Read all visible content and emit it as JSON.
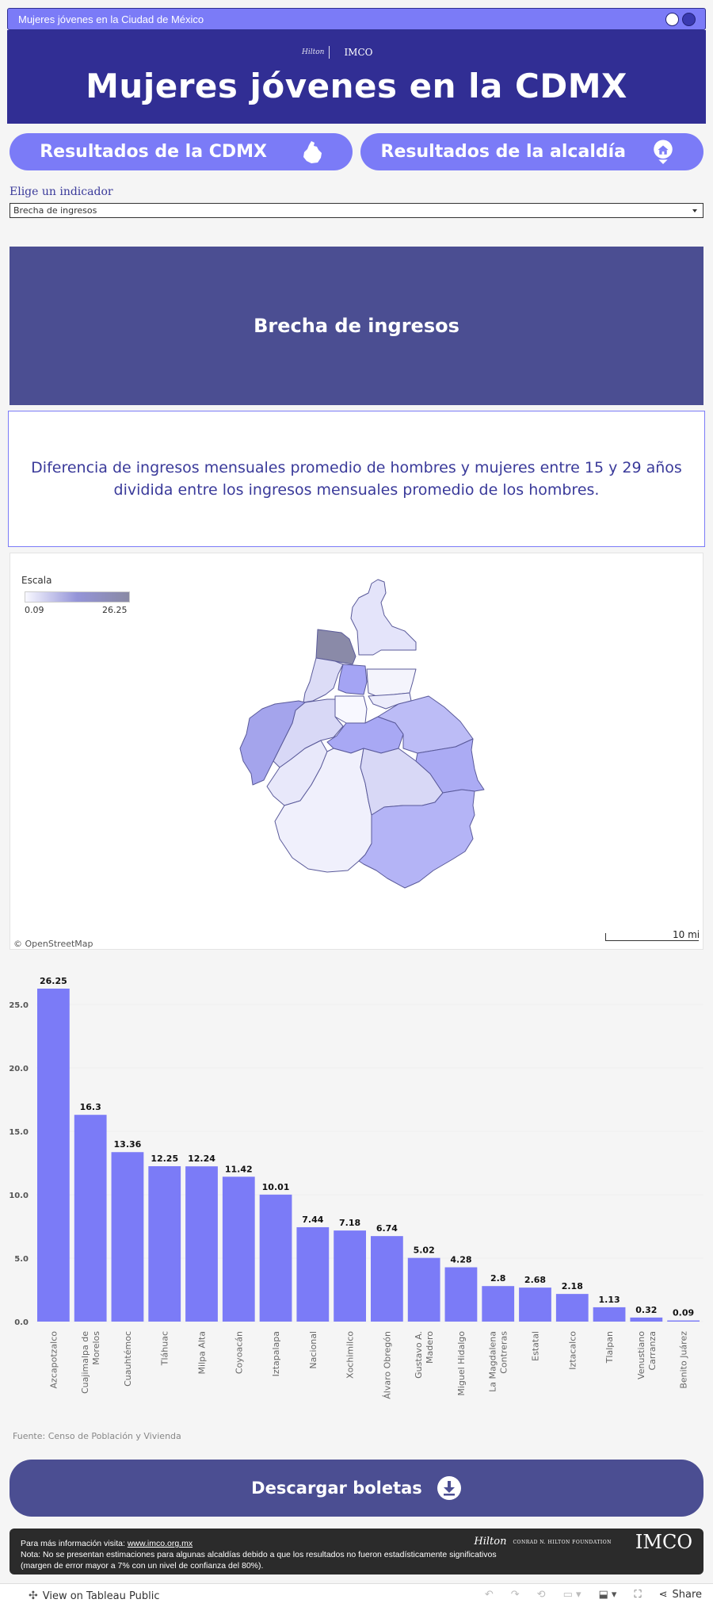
{
  "window": {
    "title": "Mujeres jóvenes en la Ciudad de México"
  },
  "header": {
    "title": "Mujeres jóvenes en la CDMX",
    "logos": {
      "hilton": "Hilton",
      "imco": "IMCO"
    }
  },
  "nav": {
    "cdmx_label": "Resultados de la CDMX",
    "alcaldia_label": "Resultados de la alcaldía"
  },
  "selector": {
    "label": "Elige un indicador",
    "value": "Brecha de ingresos"
  },
  "indicator": {
    "title": "Brecha de ingresos",
    "description": "Diferencia de ingresos mensuales promedio de hombres y mujeres entre 15 y 29 años dividida entre los ingresos mensuales promedio de los hombres."
  },
  "map": {
    "legend_title": "Escala",
    "legend_min": "0.09",
    "legend_max": "26.25",
    "attribution": "© OpenStreetMap",
    "scale_label": "10 mi",
    "colors": {
      "low": "#f8f8ff",
      "mid": "#9494e8",
      "high": "#8a8aa6"
    }
  },
  "chart_data": {
    "type": "bar",
    "categories": [
      "Azcapotzalco",
      "Cuajimalpa de Morelos",
      "Cuauhtémoc",
      "Tláhuac",
      "Milpa Alta",
      "Coyoacán",
      "Iztapalapa",
      "Nacional",
      "Xochimilco",
      "Álvaro Obregón",
      "Gustavo A. Madero",
      "Miguel Hidalgo",
      "La Magdalena Contreras",
      "Estatal",
      "Iztacalco",
      "Tlalpan",
      "Venustiano Carranza",
      "Benito Juárez"
    ],
    "values": [
      26.25,
      16.3,
      13.36,
      12.25,
      12.24,
      11.42,
      10.01,
      7.44,
      7.18,
      6.74,
      5.02,
      4.28,
      2.8,
      2.68,
      2.18,
      1.13,
      0.32,
      0.09
    ],
    "labels": [
      "26.25",
      "16.3",
      "13.36",
      "12.25",
      "12.24",
      "11.42",
      "10.01",
      "7.44",
      "7.18",
      "6.74",
      "5.02",
      "4.28",
      "2.8",
      "2.68",
      "2.18",
      "1.13",
      "0.32",
      "0.09"
    ],
    "ylim": [
      0,
      27
    ],
    "yticks": [
      "0.0",
      "5.0",
      "10.0",
      "15.0",
      "20.0",
      "25.0"
    ],
    "ytick_values": [
      0,
      5,
      10,
      15,
      20,
      25
    ],
    "color": "#7b7bf7",
    "grid": true
  },
  "source": "Fuente: Censo de Población y Vivienda",
  "download": {
    "label": "Descargar boletas"
  },
  "footer": {
    "info_prefix": "Para más información visita: ",
    "link": "www.imco.org.mx",
    "note": "Nota: No se presentan estimaciones para algunas alcaldías debido a que los resultados no fueron estadísticamente significativos (margen de error mayor a 7% con un nivel de confianza del 80%).",
    "hilton_name": "Hilton",
    "hilton_caption": "CONRAD N. HILTON FOUNDATION",
    "imco": "IMCO"
  },
  "tableau": {
    "view_label": "View on Tableau Public",
    "share_label": "Share"
  }
}
